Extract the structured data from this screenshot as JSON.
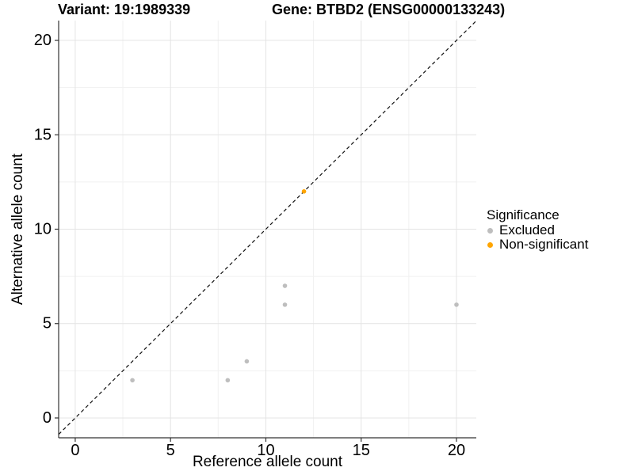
{
  "figure": {
    "title_left": "Variant: 19:1989339",
    "title_right": "Gene: BTBD2 (ENSG00000133243)"
  },
  "chart_data": {
    "type": "scatter",
    "xlabel": "Reference allele count",
    "ylabel": "Alternative allele count",
    "xlim": [
      -0.87,
      21.04
    ],
    "ylim": [
      -1.05,
      21.05
    ],
    "xticks": [
      0,
      5,
      10,
      15,
      20
    ],
    "yticks": [
      0,
      5,
      10,
      15,
      20
    ],
    "x_minor": [
      2.5,
      7.5,
      12.5,
      17.5
    ],
    "y_minor": [
      2.5,
      7.5,
      12.5,
      17.5
    ],
    "grid": true,
    "identity_line": {
      "style": "dashed",
      "color": "#111111",
      "equation": "y = x"
    },
    "series": [
      {
        "name": "Excluded",
        "color": "#BEBEBE",
        "points": [
          [
            3,
            2
          ],
          [
            8,
            2
          ],
          [
            9,
            3
          ],
          [
            11,
            6
          ],
          [
            11,
            7
          ],
          [
            20,
            6
          ]
        ]
      },
      {
        "name": "Non-significant",
        "color": "#FFA500",
        "points": [
          [
            12,
            12
          ]
        ]
      }
    ],
    "legend": {
      "title": "Significance",
      "position": "right",
      "entries": [
        {
          "label": "Excluded",
          "color": "#BEBEBE"
        },
        {
          "label": "Non-significant",
          "color": "#FFA500"
        }
      ]
    }
  }
}
